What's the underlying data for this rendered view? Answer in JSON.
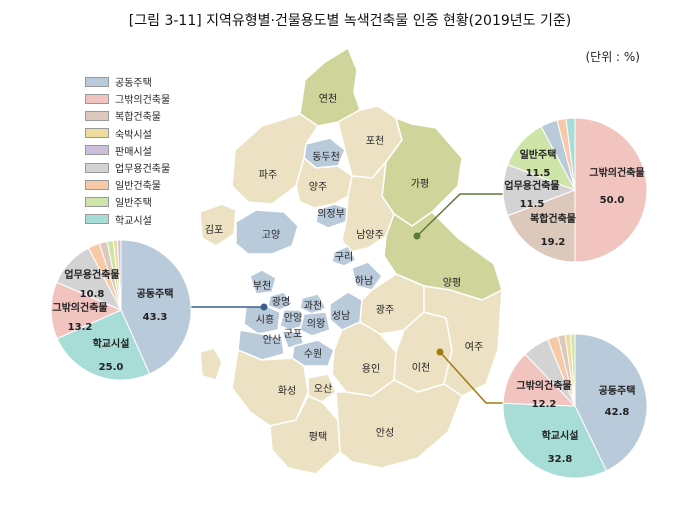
{
  "title": "[그림 3-11] 지역유형별·건물용도별 녹색건축물 인증 현황(2019년도 기준)",
  "unit": "(단위 : %)",
  "legend": [
    {
      "label": "공동주택",
      "color": "#b9cadb"
    },
    {
      "label": "그밖의건축물",
      "color": "#f2c4c0"
    },
    {
      "label": "복합건축물",
      "color": "#dcc9bb"
    },
    {
      "label": "숙박시설",
      "color": "#eedc9e"
    },
    {
      "label": "판매시설",
      "color": "#cdbfdc"
    },
    {
      "label": "업무용건축물",
      "color": "#d3d3d3"
    },
    {
      "label": "일반건축물",
      "color": "#f7c9a8"
    },
    {
      "label": "일반주택",
      "color": "#cfe4a8"
    },
    {
      "label": "학교시설",
      "color": "#a8dcd6"
    }
  ],
  "regions": {
    "yeoncheon": "연천",
    "pocheon": "포천",
    "dongducheon": "동두천",
    "paju": "파주",
    "yangju": "양주",
    "gapyeong": "가평",
    "uijeongbu": "의정부",
    "gimpo": "김포",
    "goyang": "고양",
    "namyangju": "남양주",
    "guri": "구리",
    "hanam": "하남",
    "yangpyeong": "양평",
    "bucheon": "부천",
    "gwangmyeong": "광명",
    "gwacheon": "과천",
    "siheung": "시흥",
    "anyang": "안양",
    "seongnam": "성남",
    "gwangju": "광주",
    "uiwang": "의왕",
    "gunpo": "군포",
    "ansan": "안산",
    "suwon": "수원",
    "yeoju": "여주",
    "yongin": "용인",
    "icheon": "이천",
    "hwaseong": "화성",
    "osan": "오산",
    "pyeongtaek": "평택",
    "anseong": "안성"
  },
  "pies": {
    "left": {
      "slices": [
        {
          "category": "공동주택",
          "value": 43.3,
          "label": "공동주택",
          "value_label": "43.3"
        },
        {
          "category": "학교시설",
          "value": 25.0,
          "label": "학교시설",
          "value_label": "25.0"
        },
        {
          "category": "그밖의건축물",
          "value": 13.2,
          "label": "그밖의건축물",
          "value_label": "13.2"
        },
        {
          "category": "업무용건축물",
          "value": 10.8,
          "label": "업무용건축물",
          "value_label": "10.8"
        },
        {
          "category": "일반건축물",
          "value": 2.7
        },
        {
          "category": "복합건축물",
          "value": 1.8
        },
        {
          "category": "일반주택",
          "value": 1.4
        },
        {
          "category": "숙박시설",
          "value": 1.0
        },
        {
          "category": "판매시설",
          "value": 0.8
        }
      ]
    },
    "top_right": {
      "slices": [
        {
          "category": "그밖의건축물",
          "value": 50.0,
          "label": "그밖의건축물",
          "value_label": "50.0"
        },
        {
          "category": "복합건축물",
          "value": 19.2,
          "label": "복합건축물",
          "value_label": "19.2"
        },
        {
          "category": "업무용건축물",
          "value": 11.5,
          "label": "업무용건축물",
          "value_label": "11.5"
        },
        {
          "category": "일반주택",
          "value": 11.5,
          "label": "일반주택",
          "value_label": "11.5"
        },
        {
          "category": "공동주택",
          "value": 3.8
        },
        {
          "category": "일반건축물",
          "value": 2.0
        },
        {
          "category": "학교시설",
          "value": 2.0
        }
      ]
    },
    "bottom_right": {
      "slices": [
        {
          "category": "공동주택",
          "value": 42.8,
          "label": "공동주택",
          "value_label": "42.8"
        },
        {
          "category": "학교시설",
          "value": 32.8,
          "label": "학교시설",
          "value_label": "32.8"
        },
        {
          "category": "그밖의건축물",
          "value": 12.2,
          "label": "그밖의건축물",
          "value_label": "12.2"
        },
        {
          "category": "업무용건축물",
          "value": 6.0
        },
        {
          "category": "일반건축물",
          "value": 2.4
        },
        {
          "category": "복합건축물",
          "value": 1.6
        },
        {
          "category": "숙박시설",
          "value": 1.2
        },
        {
          "category": "일반주택",
          "value": 1.0
        }
      ]
    }
  },
  "colors": {
    "map_default": "#ece2c3",
    "map_urban": "#b9cadb",
    "map_rural": "#cfd49a",
    "border": "#ffffff",
    "leader_left": "#3d5f8f",
    "leader_top": "#5a7a3a",
    "leader_bottom": "#a07a10"
  }
}
